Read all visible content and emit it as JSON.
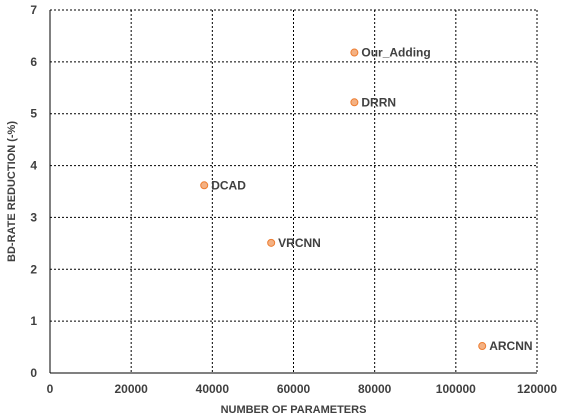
{
  "chart_data": {
    "type": "scatter",
    "title": "",
    "xlabel": "NUMBER OF PARAMETERS",
    "ylabel": "BD-RATE REDUCTION (-%)",
    "xlim": [
      0,
      120000
    ],
    "ylim": [
      0,
      7
    ],
    "xticks": [
      "0",
      "20000",
      "40000",
      "60000",
      "80000",
      "100000",
      "120000"
    ],
    "yticks": [
      "0",
      "1",
      "2",
      "3",
      "4",
      "5",
      "6",
      "7"
    ],
    "grid": true,
    "legend": "none",
    "marker_color": "#f4b183",
    "marker_edge_color": "#ed7d31",
    "grid_color": "#000000",
    "points": [
      {
        "label": "Our_Adding",
        "x": 75000,
        "y": 6.18
      },
      {
        "label": "DRRN",
        "x": 75000,
        "y": 5.22
      },
      {
        "label": "DCAD",
        "x": 38000,
        "y": 3.62
      },
      {
        "label": "VRCNN",
        "x": 54500,
        "y": 2.51
      },
      {
        "label": "ARCNN",
        "x": 106500,
        "y": 0.52
      }
    ]
  }
}
